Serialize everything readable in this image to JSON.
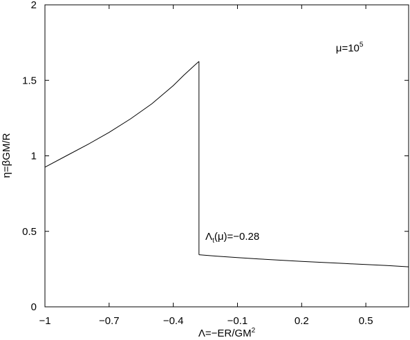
{
  "chart_data": {
    "type": "line",
    "title": "",
    "xlabel": {
      "main": "Λ=−ER/GM",
      "sup": "2"
    },
    "ylabel": "η=βGM/R",
    "xlim": [
      -1,
      0.7
    ],
    "ylim": [
      0,
      2
    ],
    "xticks": [
      -1,
      -0.7,
      -0.4,
      -0.1,
      0.2,
      0.5
    ],
    "xtick_labels": [
      "−1",
      "−0.7",
      "−0.4",
      "−0.1",
      "0.2",
      "0.5"
    ],
    "yticks": [
      0,
      0.5,
      1,
      1.5,
      2
    ],
    "ytick_labels": [
      "0",
      "0.5",
      "1",
      "1.5",
      "2"
    ],
    "grid": false,
    "annotations": [
      {
        "id": "mu",
        "main": "μ=10",
        "sup": "5",
        "x": 0.36,
        "y": 1.69
      },
      {
        "id": "lambda-t",
        "main": "Λ",
        "sub": "t",
        "rest": "(μ)=−0.28",
        "x": -0.25,
        "y": 0.445
      }
    ],
    "series": [
      {
        "x": [
          -1.0,
          -0.9,
          -0.8,
          -0.7,
          -0.6,
          -0.5,
          -0.4,
          -0.35,
          -0.3,
          -0.28
        ],
        "y": [
          0.925,
          1.0,
          1.075,
          1.155,
          1.245,
          1.345,
          1.465,
          1.535,
          1.6,
          1.625
        ]
      },
      {
        "x": [
          -0.28,
          -0.28
        ],
        "y": [
          1.625,
          0.345
        ]
      },
      {
        "x": [
          -0.28,
          -0.2,
          -0.1,
          0.0,
          0.1,
          0.2,
          0.3,
          0.4,
          0.5,
          0.6,
          0.7
        ],
        "y": [
          0.345,
          0.336,
          0.326,
          0.317,
          0.309,
          0.301,
          0.294,
          0.287,
          0.28,
          0.273,
          0.265
        ]
      }
    ]
  }
}
